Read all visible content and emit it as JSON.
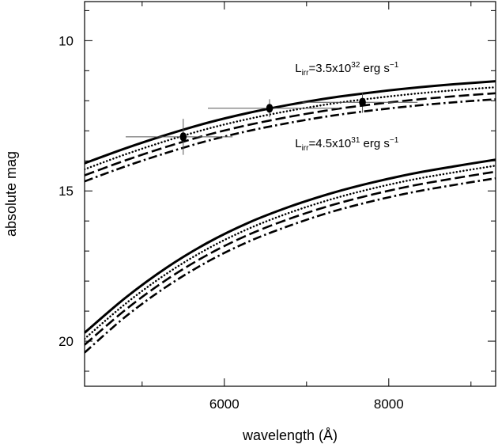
{
  "chart_data": {
    "type": "line",
    "title": "",
    "xlabel": "wavelength (Å)",
    "ylabel": "absolute mag",
    "xlim": [
      4300,
      9300
    ],
    "ylim": [
      21.5,
      8.7
    ],
    "y_inverted": true,
    "grid": false,
    "x_ticks": [
      6000,
      8000
    ],
    "x_tick_labels": [
      "6000",
      "8000"
    ],
    "x_minor_step": 1000,
    "y_ticks": [
      10,
      15,
      20
    ],
    "y_tick_labels": [
      "10",
      "15",
      "20"
    ],
    "y_minor_step": 1,
    "annotations": [
      {
        "id": "upper",
        "base": "L",
        "sub": "irr",
        "mid": "=3.5x10",
        "sup": "32",
        "tail": " erg s",
        "sup2": "−1",
        "x": 6860,
        "y": 11.05
      },
      {
        "id": "lower",
        "base": "L",
        "sub": "irr",
        "mid": "=4.5x10",
        "sup": "31",
        "tail": " erg s",
        "sup2": "−1",
        "x": 6860,
        "y": 13.55
      }
    ],
    "series": [
      {
        "group": "upper",
        "style": "solid",
        "x": [
          4300,
          4800,
          5300,
          5800,
          6300,
          6800,
          7300,
          7800,
          8300,
          8800,
          9300
        ],
        "y": [
          14.08,
          13.58,
          13.13,
          12.73,
          12.4,
          12.13,
          11.9,
          11.72,
          11.57,
          11.45,
          11.35
        ]
      },
      {
        "group": "upper",
        "style": "dotted",
        "x": [
          4300,
          4800,
          5300,
          5800,
          6300,
          6800,
          7300,
          7800,
          8300,
          8800,
          9300
        ],
        "y": [
          14.28,
          13.78,
          13.33,
          12.93,
          12.6,
          12.33,
          12.1,
          11.92,
          11.77,
          11.65,
          11.55
        ]
      },
      {
        "group": "upper",
        "style": "dashed",
        "x": [
          4300,
          4800,
          5300,
          5800,
          6300,
          6800,
          7300,
          7800,
          8300,
          8800,
          9300
        ],
        "y": [
          14.48,
          13.98,
          13.53,
          13.13,
          12.8,
          12.53,
          12.3,
          12.12,
          11.97,
          11.85,
          11.75
        ]
      },
      {
        "group": "upper",
        "style": "dashdot",
        "x": [
          4300,
          4800,
          5300,
          5800,
          6300,
          6800,
          7300,
          7800,
          8300,
          8800,
          9300
        ],
        "y": [
          14.68,
          14.18,
          13.73,
          13.33,
          13.0,
          12.73,
          12.5,
          12.32,
          12.17,
          12.05,
          11.95
        ]
      },
      {
        "group": "lower",
        "style": "solid",
        "x": [
          4300,
          4800,
          5300,
          5800,
          6300,
          6800,
          7300,
          7800,
          8300,
          8800,
          9300
        ],
        "y": [
          19.72,
          18.55,
          17.55,
          16.72,
          16.05,
          15.52,
          15.08,
          14.72,
          14.42,
          14.18,
          13.96
        ]
      },
      {
        "group": "lower",
        "style": "dotted",
        "x": [
          4300,
          4800,
          5300,
          5800,
          6300,
          6800,
          7300,
          7800,
          8300,
          8800,
          9300
        ],
        "y": [
          19.92,
          18.75,
          17.75,
          16.92,
          16.25,
          15.72,
          15.28,
          14.92,
          14.62,
          14.38,
          14.16
        ]
      },
      {
        "group": "lower",
        "style": "dashed",
        "x": [
          4300,
          4800,
          5300,
          5800,
          6300,
          6800,
          7300,
          7800,
          8300,
          8800,
          9300
        ],
        "y": [
          20.12,
          18.95,
          17.95,
          17.12,
          16.45,
          15.92,
          15.48,
          15.12,
          14.82,
          14.58,
          14.36
        ]
      },
      {
        "group": "lower",
        "style": "dashdot",
        "x": [
          4300,
          4800,
          5300,
          5800,
          6300,
          6800,
          7300,
          7800,
          8300,
          8800,
          9300
        ],
        "y": [
          20.38,
          19.18,
          18.18,
          17.35,
          16.68,
          16.15,
          15.7,
          15.34,
          15.04,
          14.8,
          14.58
        ]
      }
    ],
    "data_points": [
      {
        "x": 5500,
        "y": 13.2,
        "xerr": [
          4800,
          6100
        ],
        "yerr": [
          12.6,
          13.8
        ]
      },
      {
        "x": 6550,
        "y": 12.25,
        "xerr": [
          5800,
          7400
        ],
        "yerr": [
          11.95,
          12.55
        ]
      },
      {
        "x": 7680,
        "y": 12.05,
        "xerr": [
          6950,
          8350
        ],
        "yerr": [
          11.75,
          12.4
        ]
      }
    ]
  }
}
